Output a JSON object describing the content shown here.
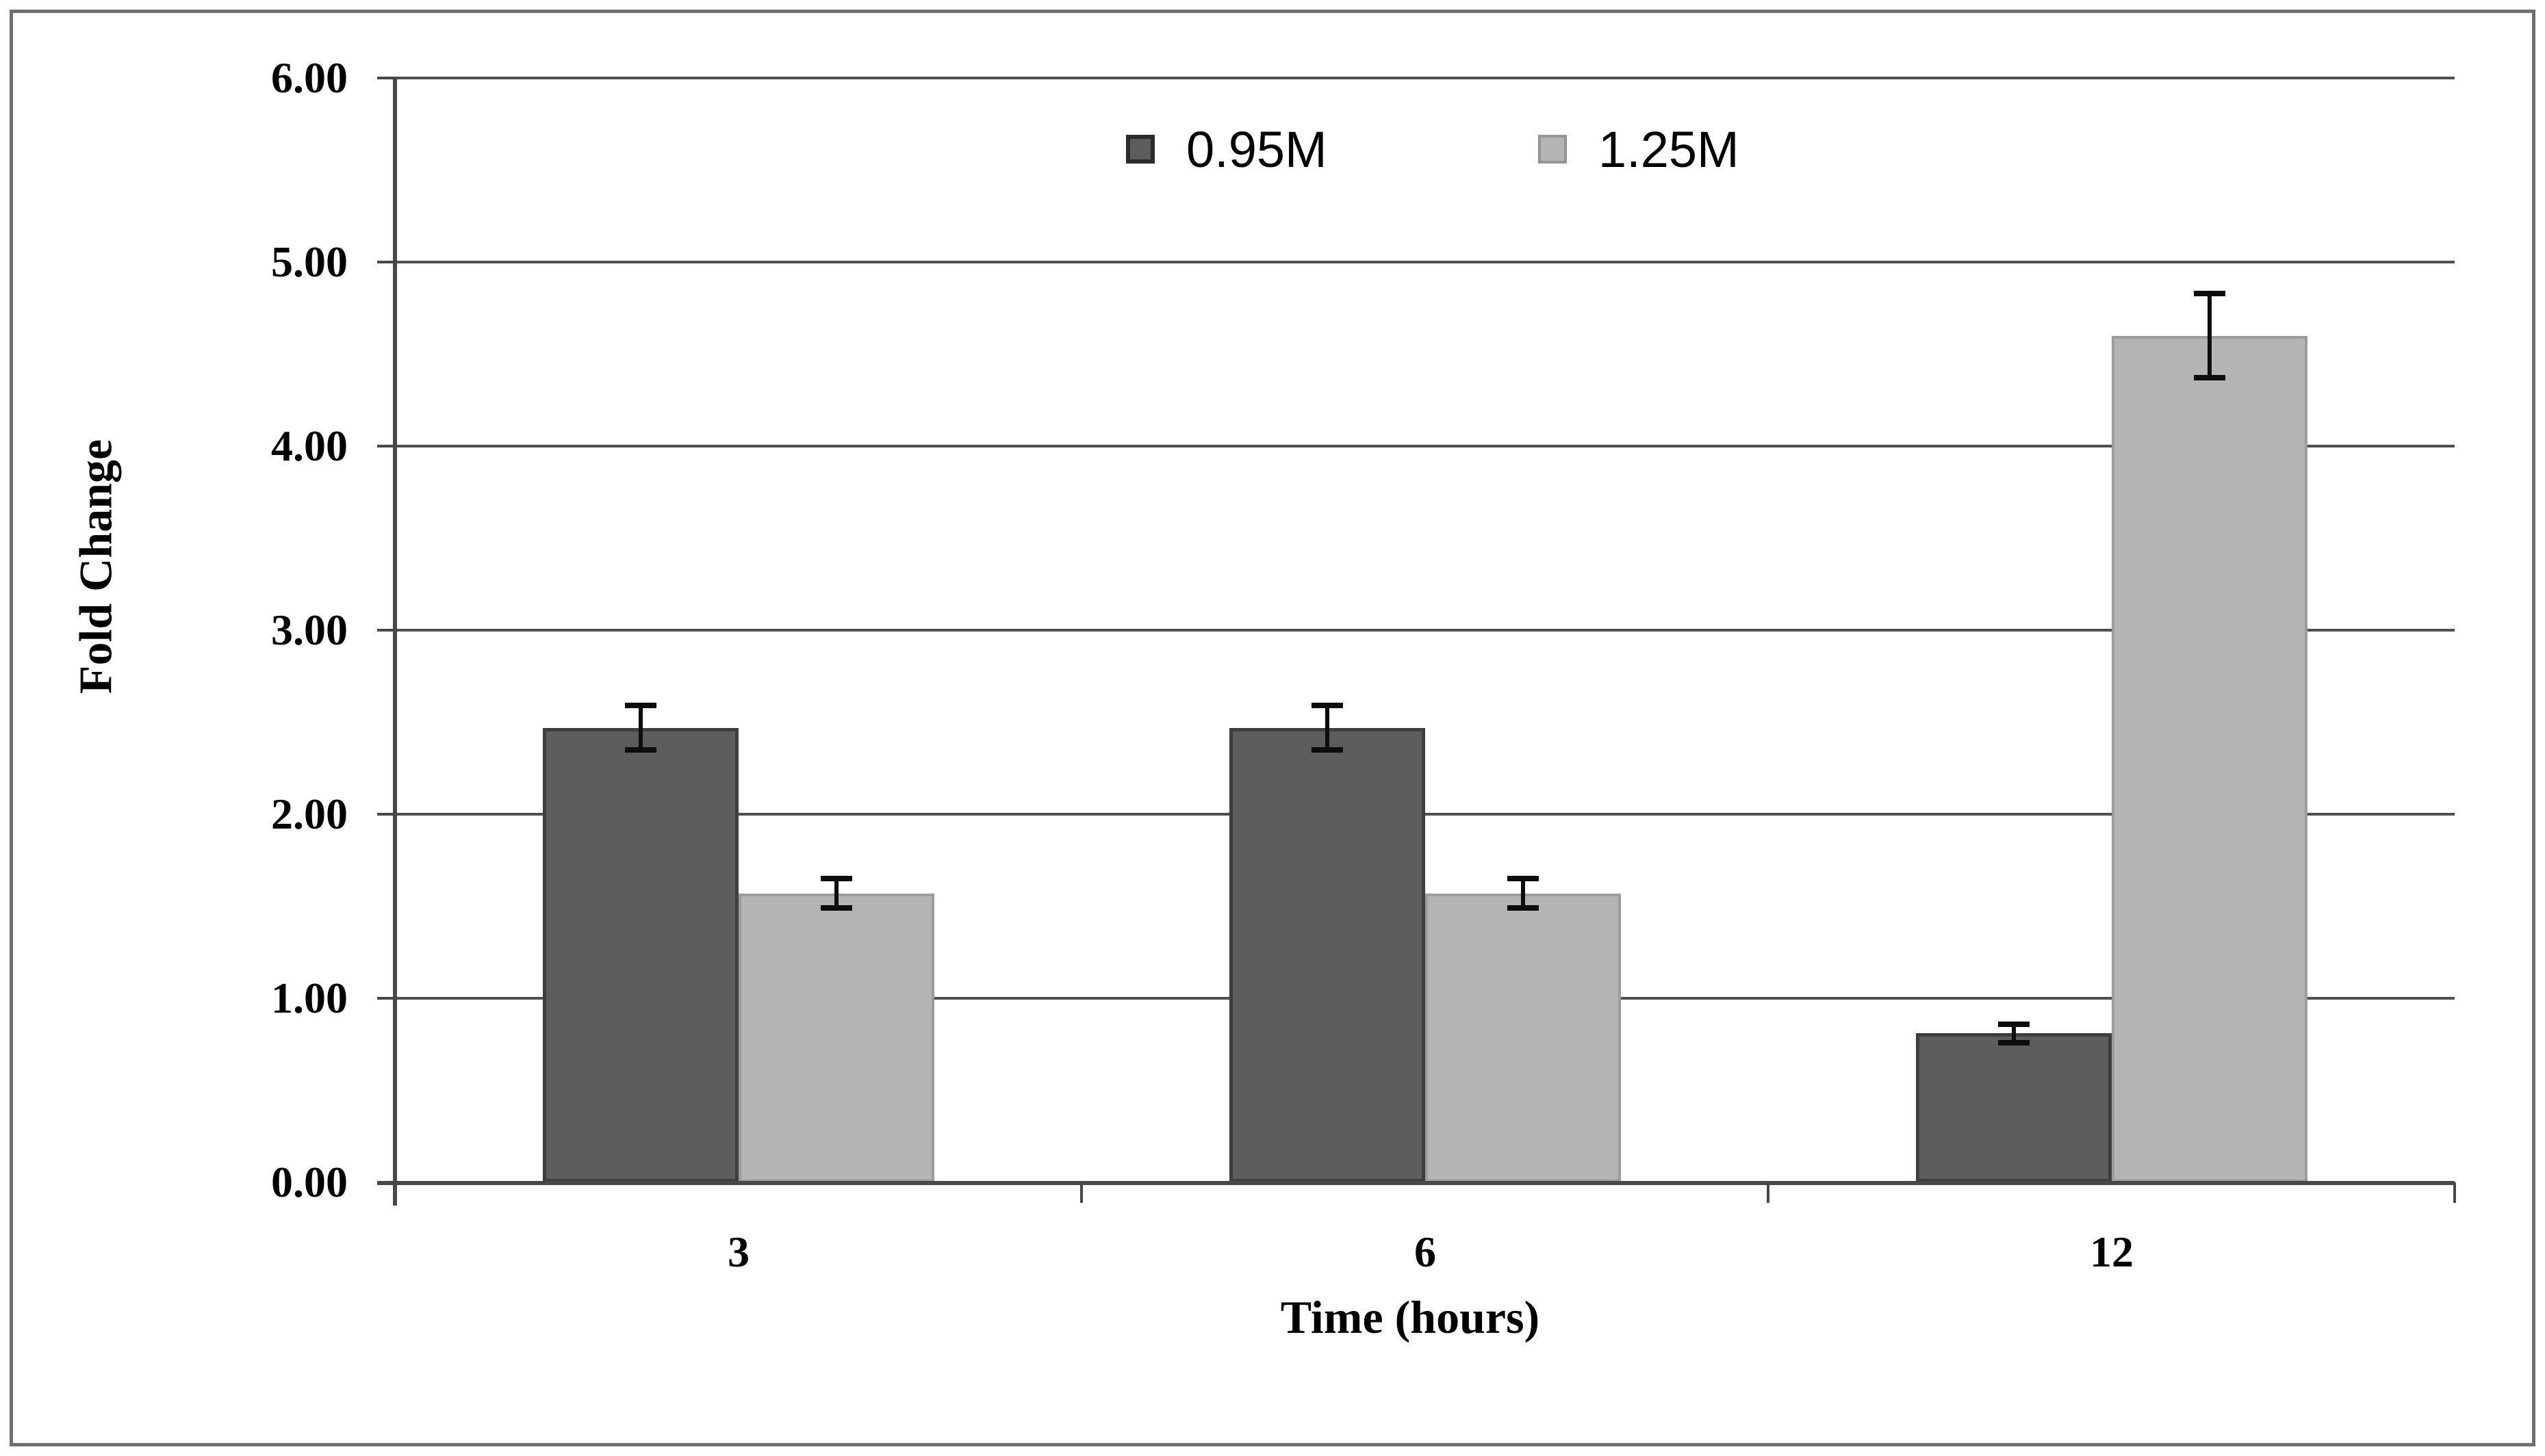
{
  "chart_data": {
    "type": "bar",
    "title": "",
    "xlabel": "Time (hours)",
    "ylabel": "Fold Change",
    "categories": [
      "3",
      "6",
      "12"
    ],
    "series": [
      {
        "name": "0.95M",
        "color": "#5d5d5d",
        "border_color": "#3e3e3e",
        "values": [
          2.47,
          2.47,
          0.81
        ],
        "errors": [
          0.12,
          0.12,
          0.05
        ]
      },
      {
        "name": "1.25M",
        "color": "#b4b4b4",
        "border_color": "#9c9c9c",
        "values": [
          1.57,
          1.57,
          4.6
        ],
        "errors": [
          0.08,
          0.08,
          0.23
        ]
      }
    ],
    "y_ticks": [
      "6.00",
      "5.00",
      "4.00",
      "3.00",
      "2.00",
      "1.00",
      "0.00"
    ],
    "ylim": [
      0,
      6
    ],
    "grid": true,
    "error_bars": true,
    "legend_position": "top-center",
    "plot_background": "#ffffff"
  }
}
